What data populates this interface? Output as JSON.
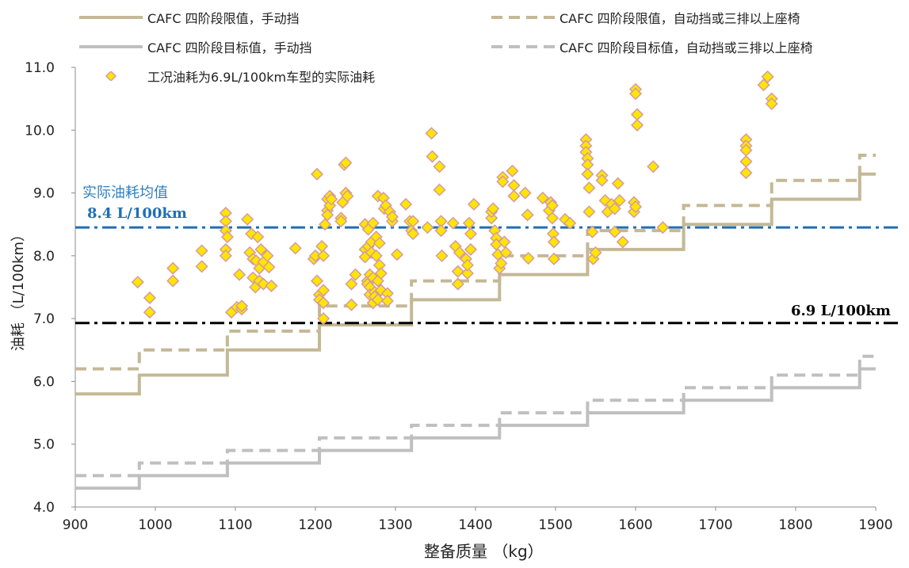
{
  "chart_data": {
    "type": "scatter",
    "xlabel": "整备质量 （kg）",
    "ylabel": "油耗 （L/100km）",
    "xlim": [
      900,
      1900
    ],
    "ylim": [
      4.0,
      11.0
    ],
    "x_ticks": [
      "900",
      "1000",
      "1100",
      "1200",
      "1300",
      "1400",
      "1500",
      "1600",
      "1700",
      "1800",
      "1900"
    ],
    "y_ticks": [
      "4.0",
      "5.0",
      "6.0",
      "7.0",
      "8.0",
      "9.0",
      "10.0",
      "11.0"
    ],
    "grid": false,
    "legend_position": "top",
    "legend": [
      "CAFC 四阶段限值，手动挡",
      "CAFC 四阶段限值，自动挡或三排以上座椅",
      "CAFC 四阶段目标值，手动挡",
      "CAFC 四阶段目标值，自动挡或三排以上座椅",
      "工况油耗为6.9L/100km车型的实际油耗"
    ],
    "annotations": {
      "mean_label": "实际油耗均值",
      "mean_value_label": "8.4 L/100km",
      "nominal_value_label": "6.9 L/100km"
    },
    "reference_lines": [
      {
        "y": 8.45,
        "color": "#1f6fb5",
        "style": "dash-dot"
      },
      {
        "y": 6.93,
        "color": "#000000",
        "style": "dash-dot"
      }
    ],
    "series": [
      {
        "name": "CAFC 四阶段限值，手动挡",
        "type": "step",
        "color": "#c4b896",
        "dashed": false,
        "breaks": [
          900,
          980,
          1090,
          1205,
          1320,
          1430,
          1540,
          1660,
          1770,
          1880,
          1900
        ],
        "values": [
          5.8,
          6.1,
          6.5,
          6.9,
          7.3,
          7.7,
          8.1,
          8.5,
          8.9,
          9.3
        ]
      },
      {
        "name": "CAFC 四阶段限值，自动挡或三排以上座椅",
        "type": "step",
        "color": "#c4b896",
        "dashed": true,
        "breaks": [
          900,
          980,
          1090,
          1205,
          1320,
          1430,
          1540,
          1660,
          1770,
          1880,
          1900
        ],
        "values": [
          6.2,
          6.5,
          6.8,
          7.2,
          7.6,
          8.0,
          8.4,
          8.8,
          9.2,
          9.6
        ]
      },
      {
        "name": "CAFC 四阶段目标值，手动挡",
        "type": "step",
        "color": "#bfbfbf",
        "dashed": false,
        "breaks": [
          900,
          980,
          1090,
          1205,
          1320,
          1430,
          1540,
          1660,
          1770,
          1880,
          1900
        ],
        "values": [
          4.3,
          4.5,
          4.7,
          4.9,
          5.1,
          5.3,
          5.5,
          5.7,
          5.9,
          6.2
        ]
      },
      {
        "name": "CAFC 四阶段目标值，自动挡或三排以上座椅",
        "type": "step",
        "color": "#bfbfbf",
        "dashed": true,
        "breaks": [
          900,
          980,
          1090,
          1205,
          1320,
          1430,
          1540,
          1660,
          1770,
          1880,
          1900
        ],
        "values": [
          4.5,
          4.7,
          4.9,
          5.1,
          5.3,
          5.5,
          5.7,
          5.9,
          6.1,
          6.4
        ]
      },
      {
        "name": "工况油耗为6.9L/100km车型的实际油耗",
        "type": "scatter",
        "marker": "diamond",
        "fill": "#ffe600",
        "stroke": "#d69aa0",
        "points": [
          [
            978,
            7.58
          ],
          [
            993,
            7.33
          ],
          [
            993,
            7.1
          ],
          [
            1022,
            7.8
          ],
          [
            1022,
            7.6
          ],
          [
            1058,
            8.08
          ],
          [
            1058,
            7.83
          ],
          [
            1088,
            8.68
          ],
          [
            1088,
            8.55
          ],
          [
            1088,
            8.4
          ],
          [
            1088,
            8.1
          ],
          [
            1088,
            8.0
          ],
          [
            1090,
            8.3
          ],
          [
            1095,
            7.1
          ],
          [
            1102,
            7.18
          ],
          [
            1105,
            7.7
          ],
          [
            1108,
            7.15
          ],
          [
            1108,
            7.2
          ],
          [
            1115,
            8.58
          ],
          [
            1118,
            8.05
          ],
          [
            1120,
            8.35
          ],
          [
            1122,
            7.95
          ],
          [
            1122,
            7.65
          ],
          [
            1125,
            7.5
          ],
          [
            1126,
            7.92
          ],
          [
            1128,
            8.3
          ],
          [
            1130,
            7.8
          ],
          [
            1130,
            7.6
          ],
          [
            1132,
            8.1
          ],
          [
            1135,
            7.9
          ],
          [
            1135,
            7.55
          ],
          [
            1140,
            8.0
          ],
          [
            1142,
            7.82
          ],
          [
            1145,
            7.52
          ],
          [
            1175,
            8.12
          ],
          [
            1198,
            7.95
          ],
          [
            1200,
            8.0
          ],
          [
            1202,
            9.3
          ],
          [
            1202,
            7.6
          ],
          [
            1205,
            7.38
          ],
          [
            1205,
            7.3
          ],
          [
            1208,
            8.15
          ],
          [
            1210,
            8.0
          ],
          [
            1210,
            7.45
          ],
          [
            1210,
            7.25
          ],
          [
            1210,
            7.0
          ],
          [
            1212,
            8.5
          ],
          [
            1215,
            8.9
          ],
          [
            1215,
            8.72
          ],
          [
            1215,
            8.65
          ],
          [
            1218,
            8.95
          ],
          [
            1218,
            8.8
          ],
          [
            1220,
            8.9
          ],
          [
            1232,
            8.6
          ],
          [
            1232,
            8.55
          ],
          [
            1234,
            8.85
          ],
          [
            1236,
            9.45
          ],
          [
            1238,
            9.48
          ],
          [
            1238,
            9.0
          ],
          [
            1240,
            8.95
          ],
          [
            1245,
            7.55
          ],
          [
            1245,
            7.22
          ],
          [
            1250,
            7.7
          ],
          [
            1262,
            8.5
          ],
          [
            1262,
            8.1
          ],
          [
            1262,
            7.98
          ],
          [
            1265,
            7.6
          ],
          [
            1265,
            7.55
          ],
          [
            1266,
            8.42
          ],
          [
            1266,
            8.15
          ],
          [
            1268,
            7.7
          ],
          [
            1268,
            7.5
          ],
          [
            1268,
            7.38
          ],
          [
            1270,
            8.22
          ],
          [
            1270,
            8.05
          ],
          [
            1272,
            8.52
          ],
          [
            1272,
            7.65
          ],
          [
            1272,
            7.25
          ],
          [
            1274,
            7.42
          ],
          [
            1274,
            7.35
          ],
          [
            1276,
            8.3
          ],
          [
            1276,
            8.0
          ],
          [
            1278,
            8.95
          ],
          [
            1278,
            7.6
          ],
          [
            1278,
            7.3
          ],
          [
            1280,
            8.2
          ],
          [
            1280,
            7.85
          ],
          [
            1282,
            7.72
          ],
          [
            1282,
            7.45
          ],
          [
            1285,
            8.92
          ],
          [
            1286,
            8.75
          ],
          [
            1288,
            8.8
          ],
          [
            1290,
            7.4
          ],
          [
            1290,
            7.28
          ],
          [
            1293,
            8.7
          ],
          [
            1296,
            8.55
          ],
          [
            1296,
            8.62
          ],
          [
            1302,
            8.02
          ],
          [
            1313,
            8.82
          ],
          [
            1318,
            8.55
          ],
          [
            1320,
            8.4
          ],
          [
            1322,
            8.35
          ],
          [
            1322,
            8.55
          ],
          [
            1340,
            8.45
          ],
          [
            1345,
            9.95
          ],
          [
            1346,
            9.58
          ],
          [
            1355,
            9.42
          ],
          [
            1355,
            9.05
          ],
          [
            1357,
            8.55
          ],
          [
            1357,
            8.4
          ],
          [
            1358,
            8.0
          ],
          [
            1372,
            8.52
          ],
          [
            1375,
            8.15
          ],
          [
            1378,
            7.75
          ],
          [
            1378,
            7.55
          ],
          [
            1380,
            8.05
          ],
          [
            1388,
            7.95
          ],
          [
            1390,
            7.72
          ],
          [
            1390,
            7.85
          ],
          [
            1392,
            8.52
          ],
          [
            1394,
            8.1
          ],
          [
            1394,
            8.35
          ],
          [
            1398,
            8.82
          ],
          [
            1420,
            8.6
          ],
          [
            1420,
            8.7
          ],
          [
            1422,
            8.75
          ],
          [
            1424,
            8.4
          ],
          [
            1426,
            8.28
          ],
          [
            1426,
            8.18
          ],
          [
            1428,
            8.02
          ],
          [
            1430,
            7.8
          ],
          [
            1432,
            7.88
          ],
          [
            1434,
            9.25
          ],
          [
            1434,
            9.18
          ],
          [
            1436,
            8.22
          ],
          [
            1438,
            8.05
          ],
          [
            1446,
            9.35
          ],
          [
            1448,
            9.12
          ],
          [
            1448,
            8.95
          ],
          [
            1462,
            9.0
          ],
          [
            1465,
            8.65
          ],
          [
            1466,
            7.96
          ],
          [
            1484,
            8.92
          ],
          [
            1492,
            8.72
          ],
          [
            1494,
            8.85
          ],
          [
            1496,
            8.8
          ],
          [
            1496,
            8.6
          ],
          [
            1497,
            8.35
          ],
          [
            1498,
            8.22
          ],
          [
            1498,
            7.95
          ],
          [
            1512,
            8.58
          ],
          [
            1518,
            8.52
          ],
          [
            1538,
            9.85
          ],
          [
            1538,
            9.75
          ],
          [
            1538,
            9.65
          ],
          [
            1540,
            9.55
          ],
          [
            1540,
            9.45
          ],
          [
            1540,
            9.3
          ],
          [
            1542,
            9.08
          ],
          [
            1542,
            8.7
          ],
          [
            1546,
            8.38
          ],
          [
            1547,
            7.95
          ],
          [
            1550,
            8.05
          ],
          [
            1558,
            9.28
          ],
          [
            1558,
            9.2
          ],
          [
            1562,
            8.88
          ],
          [
            1565,
            8.7
          ],
          [
            1570,
            8.82
          ],
          [
            1574,
            8.75
          ],
          [
            1574,
            8.38
          ],
          [
            1578,
            9.15
          ],
          [
            1580,
            8.88
          ],
          [
            1584,
            8.22
          ],
          [
            1598,
            8.85
          ],
          [
            1598,
            8.7
          ],
          [
            1600,
            8.78
          ],
          [
            1600,
            10.65
          ],
          [
            1600,
            10.58
          ],
          [
            1602,
            10.25
          ],
          [
            1602,
            10.08
          ],
          [
            1622,
            9.42
          ],
          [
            1634,
            8.45
          ],
          [
            1738,
            9.85
          ],
          [
            1738,
            9.75
          ],
          [
            1738,
            9.68
          ],
          [
            1738,
            9.5
          ],
          [
            1738,
            9.32
          ],
          [
            1760,
            10.72
          ],
          [
            1765,
            10.85
          ],
          [
            1770,
            10.5
          ],
          [
            1770,
            10.42
          ]
        ]
      }
    ]
  }
}
